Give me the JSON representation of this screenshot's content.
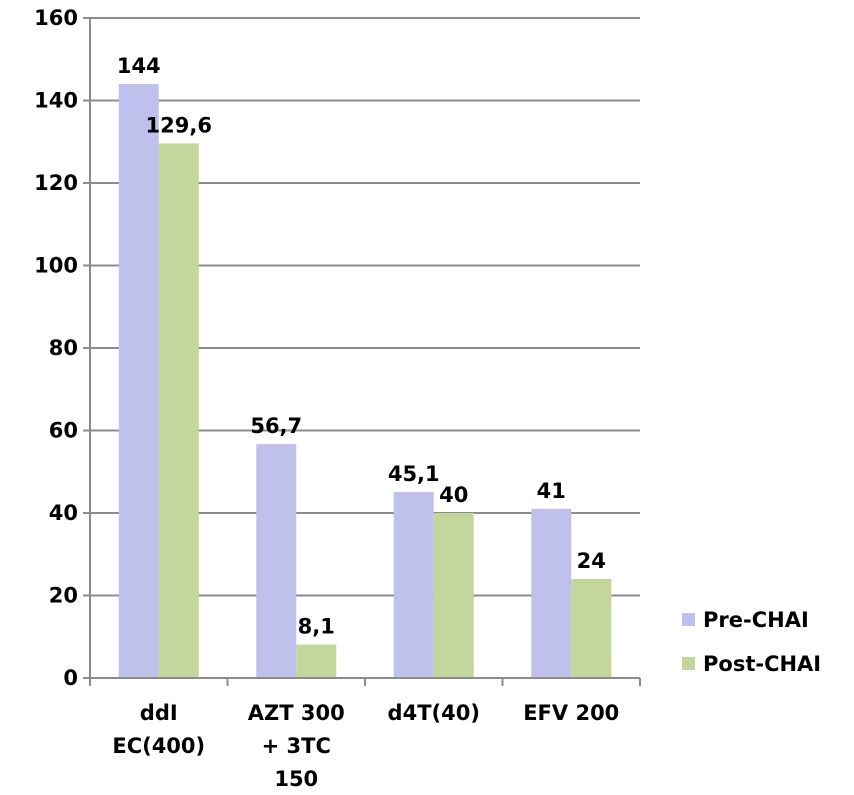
{
  "chart_data": {
    "type": "bar",
    "categories": [
      [
        "ddI",
        "EC(400)"
      ],
      [
        "AZT 300",
        "+ 3TC",
        "150"
      ],
      [
        "d4T(40)"
      ],
      [
        "EFV 200"
      ]
    ],
    "series": [
      {
        "name": "Pre-CHAI",
        "color": "#c0c0ec",
        "values": [
          144,
          56.7,
          45.1,
          41
        ],
        "labels": [
          "144",
          "56,7",
          "45,1",
          "41"
        ]
      },
      {
        "name": "Post-CHAI",
        "color": "#c3d69b",
        "values": [
          129.6,
          8.1,
          40,
          24
        ],
        "labels": [
          "129,6",
          "8,1",
          "40",
          "24"
        ]
      }
    ],
    "ylim": [
      0,
      160
    ],
    "yticks": [
      0,
      20,
      40,
      60,
      80,
      100,
      120,
      140,
      160
    ],
    "grid": true,
    "legend_position": "right",
    "title": "",
    "xlabel": "",
    "ylabel": ""
  }
}
